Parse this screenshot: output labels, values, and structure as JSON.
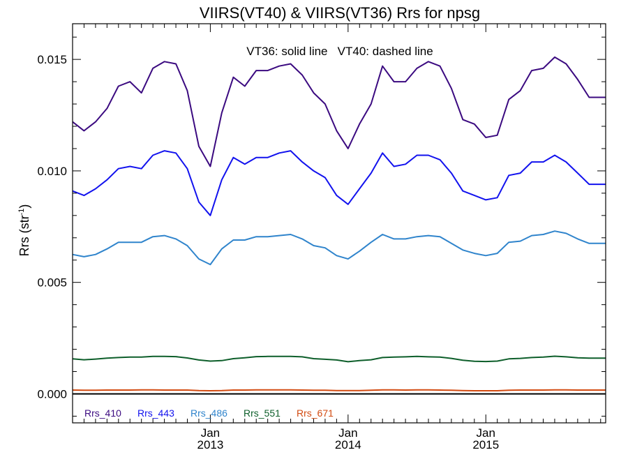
{
  "chart_data": {
    "type": "line",
    "title": "VIIRS(VT40) & VIIRS(VT36)  Rrs for npsg",
    "annotation": "VT36: solid line   VT40: dashed line",
    "ylabel": "Rrs (str",
    "ylabel_sup": "-1",
    "xlabel": "",
    "x_units": "decimal year",
    "xlim": [
      2012.0,
      2015.87
    ],
    "ylim": [
      -0.0013,
      0.0166
    ],
    "yticks": [
      0.0,
      0.005,
      0.01,
      0.015
    ],
    "ytick_labels": [
      "0.000",
      "0.005",
      "0.010",
      "0.015"
    ],
    "xticks": [
      2013.0,
      2014.0,
      2015.0
    ],
    "xtick_labels_month": [
      "Jan",
      "Jan",
      "Jan"
    ],
    "xtick_labels_year": [
      "2013",
      "2014",
      "2015"
    ],
    "grid": false,
    "legend_placement": "bottom-left",
    "zero_line": true,
    "x": [
      2012.0,
      2012.083,
      2012.167,
      2012.25,
      2012.333,
      2012.417,
      2012.5,
      2012.583,
      2012.667,
      2012.75,
      2012.833,
      2012.917,
      2013.0,
      2013.083,
      2013.167,
      2013.25,
      2013.333,
      2013.417,
      2013.5,
      2013.583,
      2013.667,
      2013.75,
      2013.833,
      2013.917,
      2014.0,
      2014.083,
      2014.167,
      2014.25,
      2014.333,
      2014.417,
      2014.5,
      2014.583,
      2014.667,
      2014.75,
      2014.833,
      2014.917,
      2015.0,
      2015.083,
      2015.167,
      2015.25,
      2015.333,
      2015.417,
      2015.5,
      2015.583,
      2015.667,
      2015.75,
      2015.833,
      2015.87
    ],
    "series": [
      {
        "name": "Rrs_410",
        "color": "#3b0a80",
        "values": [
          0.0122,
          0.0118,
          0.0122,
          0.0128,
          0.0138,
          0.014,
          0.0135,
          0.0146,
          0.0149,
          0.0148,
          0.0136,
          0.0111,
          0.0102,
          0.0126,
          0.0142,
          0.0138,
          0.0145,
          0.0145,
          0.0147,
          0.0148,
          0.0143,
          0.0135,
          0.013,
          0.0118,
          0.011,
          0.0121,
          0.013,
          0.0147,
          0.014,
          0.014,
          0.0146,
          0.0149,
          0.0147,
          0.0137,
          0.0123,
          0.0121,
          0.0115,
          0.0116,
          0.0132,
          0.0136,
          0.0145,
          0.0146,
          0.0151,
          0.0148,
          0.0141,
          0.0133,
          0.0133,
          0.0133
        ]
      },
      {
        "name": "Rrs_443",
        "color": "#1212ee",
        "values": [
          0.0091,
          0.0089,
          0.0092,
          0.0096,
          0.0101,
          0.0102,
          0.0101,
          0.0107,
          0.0109,
          0.0108,
          0.0101,
          0.0086,
          0.008,
          0.0096,
          0.0106,
          0.0103,
          0.0106,
          0.0106,
          0.0108,
          0.0109,
          0.0104,
          0.01,
          0.0097,
          0.0089,
          0.0085,
          0.0092,
          0.0099,
          0.0108,
          0.0102,
          0.0103,
          0.0107,
          0.0107,
          0.0105,
          0.0099,
          0.0091,
          0.0089,
          0.0087,
          0.0088,
          0.0098,
          0.0099,
          0.0104,
          0.0104,
          0.0107,
          0.0104,
          0.0099,
          0.0094,
          0.0094,
          0.0094
        ]
      },
      {
        "name": "Rrs_486",
        "color": "#2f84cc",
        "values": [
          0.00625,
          0.00615,
          0.00625,
          0.0065,
          0.0068,
          0.0068,
          0.0068,
          0.00705,
          0.0071,
          0.00695,
          0.00665,
          0.00605,
          0.0058,
          0.0065,
          0.0069,
          0.0069,
          0.00705,
          0.00705,
          0.0071,
          0.00715,
          0.00695,
          0.00665,
          0.00655,
          0.0062,
          0.00605,
          0.0064,
          0.0068,
          0.00715,
          0.00695,
          0.00695,
          0.00705,
          0.0071,
          0.00705,
          0.00675,
          0.00645,
          0.0063,
          0.0062,
          0.0063,
          0.0068,
          0.00685,
          0.0071,
          0.00715,
          0.0073,
          0.0072,
          0.00695,
          0.00675,
          0.00675,
          0.00675
        ]
      },
      {
        "name": "Rrs_551",
        "color": "#0d5e2a",
        "values": [
          0.00157,
          0.00153,
          0.00156,
          0.0016,
          0.00163,
          0.00165,
          0.00165,
          0.00168,
          0.00168,
          0.00167,
          0.00161,
          0.00152,
          0.00147,
          0.00149,
          0.00158,
          0.00162,
          0.00167,
          0.00168,
          0.00168,
          0.00168,
          0.00166,
          0.00158,
          0.00155,
          0.00152,
          0.00144,
          0.00149,
          0.00153,
          0.00163,
          0.00165,
          0.00166,
          0.00168,
          0.00166,
          0.00165,
          0.00159,
          0.00151,
          0.00146,
          0.00145,
          0.00147,
          0.00157,
          0.00159,
          0.00163,
          0.00165,
          0.00169,
          0.00166,
          0.00162,
          0.0016,
          0.0016,
          0.0016
        ]
      },
      {
        "name": "Rrs_671",
        "color": "#d24a10",
        "values": [
          0.00017,
          0.00016,
          0.00016,
          0.00017,
          0.00017,
          0.00017,
          0.00018,
          0.00018,
          0.00017,
          0.00017,
          0.00017,
          0.00015,
          0.00014,
          0.00015,
          0.00017,
          0.00017,
          0.00018,
          0.00018,
          0.00018,
          0.00018,
          0.00017,
          0.00016,
          0.00016,
          0.00015,
          0.00015,
          0.00015,
          0.00016,
          0.00018,
          0.00018,
          0.00017,
          0.00018,
          0.00018,
          0.00017,
          0.00016,
          0.00015,
          0.00014,
          0.00014,
          0.00014,
          0.00016,
          0.00017,
          0.00017,
          0.00017,
          0.00018,
          0.00018,
          0.00017,
          0.00017,
          0.00017,
          0.00017
        ]
      }
    ]
  }
}
